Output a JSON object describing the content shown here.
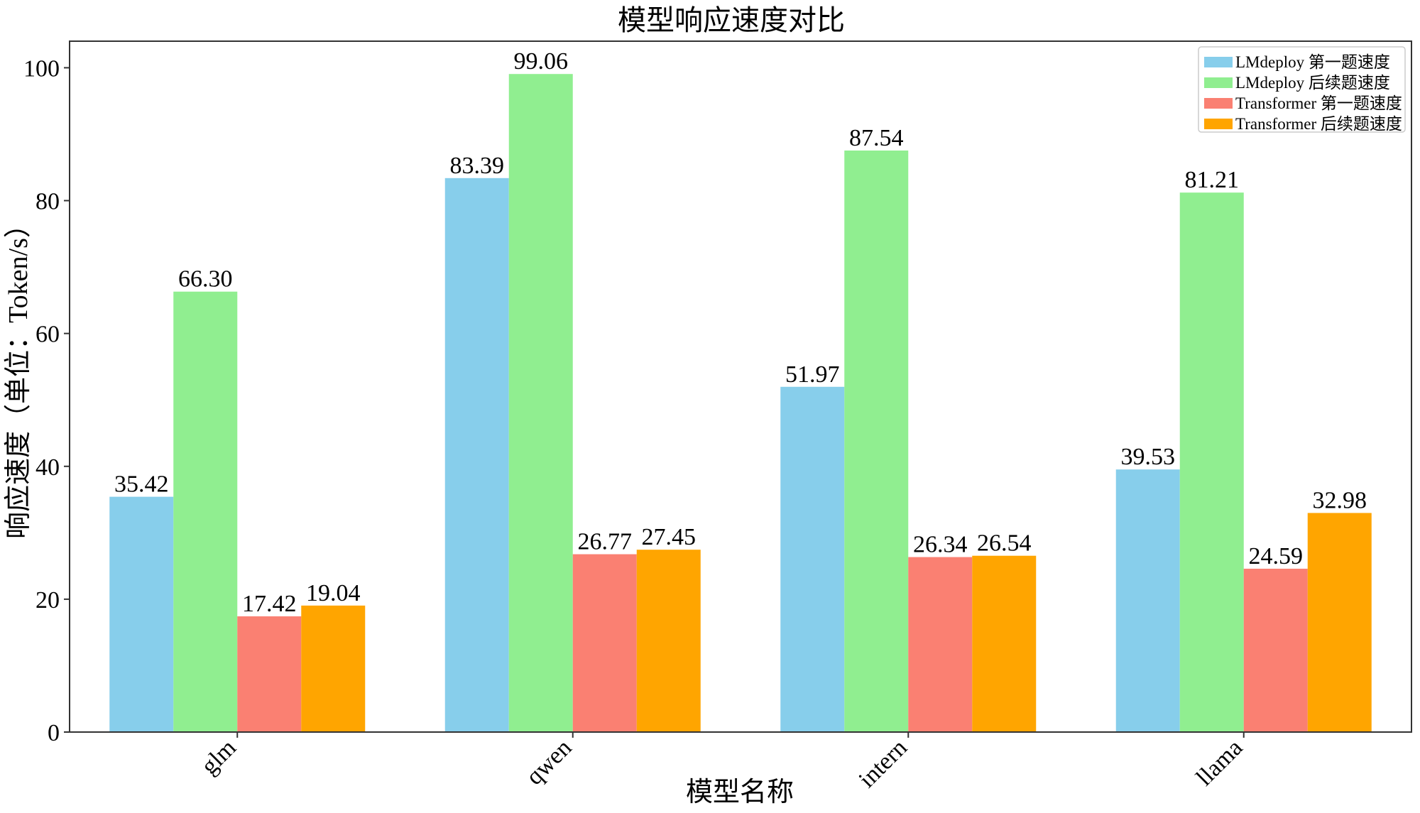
{
  "chart_data": {
    "type": "bar",
    "title": "模型响应速度对比",
    "xlabel": "模型名称",
    "ylabel": "响应速度（单位：Token/s）",
    "categories": [
      "glm",
      "qwen",
      "intern",
      "llama"
    ],
    "ylim": [
      0,
      104
    ],
    "yticks": [
      0,
      20,
      40,
      60,
      80,
      100
    ],
    "grid": false,
    "legend_position": "top-right",
    "series": [
      {
        "name": "LMdeploy 第一题速度",
        "color": "#87CEEB",
        "values": [
          35.42,
          83.39,
          51.97,
          39.53
        ],
        "labels": [
          "35.42",
          "83.39",
          "51.97",
          "39.53"
        ]
      },
      {
        "name": "LMdeploy 后续题速度",
        "color": "#90EE90",
        "values": [
          66.3,
          99.06,
          87.54,
          81.21
        ],
        "labels": [
          "66.30",
          "99.06",
          "87.54",
          "81.21"
        ]
      },
      {
        "name": "Transformer 第一题速度",
        "color": "#FA8072",
        "values": [
          17.42,
          26.77,
          26.34,
          24.59
        ],
        "labels": [
          "17.42",
          "26.77",
          "26.34",
          "24.59"
        ]
      },
      {
        "name": "Transformer 后续题速度",
        "color": "#FFA500",
        "values": [
          19.04,
          27.45,
          26.54,
          32.98
        ],
        "labels": [
          "19.04",
          "27.45",
          "26.54",
          "32.98"
        ]
      }
    ]
  }
}
